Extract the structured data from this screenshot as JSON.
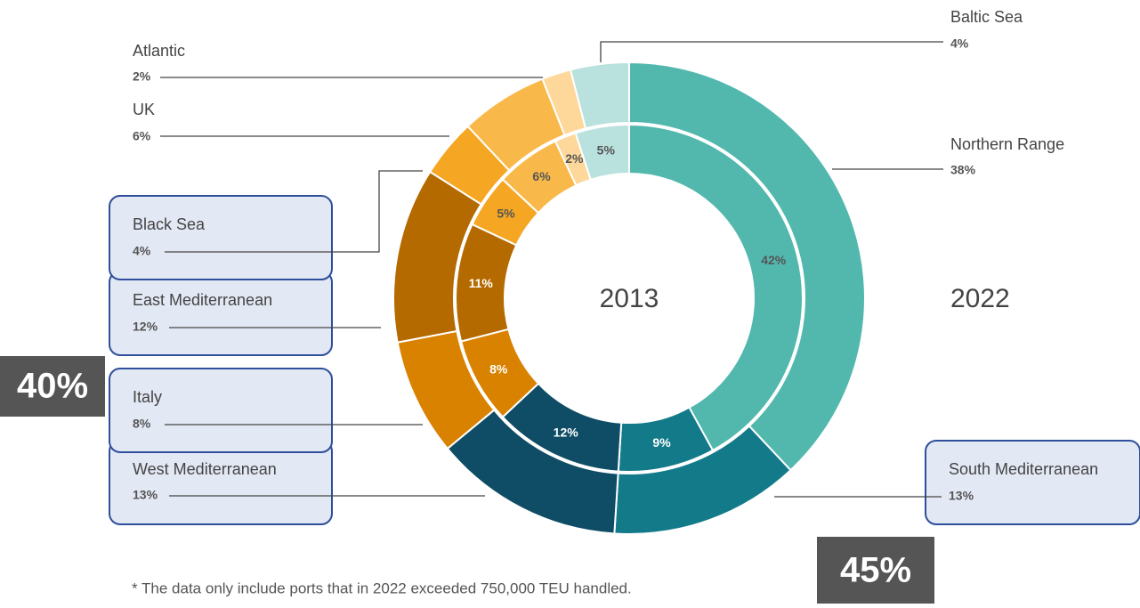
{
  "chart_data": {
    "type": "nested-donut",
    "categories": [
      "Northern Range",
      "South Mediterranean",
      "West Mediterranean",
      "Italy",
      "East Mediterranean",
      "Black Sea",
      "UK",
      "Atlantic",
      "Baltic Sea"
    ],
    "colors": [
      "#52b8ae",
      "#137a89",
      "#0f4c66",
      "#d98200",
      "#b56a00",
      "#f5a623",
      "#f9b94a",
      "#fdd89a",
      "#b9e1dd"
    ],
    "highlighted": [
      false,
      true,
      true,
      true,
      true,
      true,
      false,
      false,
      false
    ],
    "series": [
      {
        "name": "2013",
        "values": [
          42,
          9,
          12,
          8,
          11,
          5,
          6,
          2,
          5
        ],
        "value_labels": [
          "42%",
          "9%",
          "12%",
          "8%",
          "11%",
          "5%",
          "6%",
          "2%",
          "5%"
        ]
      },
      {
        "name": "2022",
        "values": [
          38,
          13,
          13,
          8,
          12,
          4,
          6,
          2,
          4
        ],
        "value_labels": [
          "38%",
          "13%",
          "13%",
          "8%",
          "12%",
          "4%",
          "6%",
          "2%",
          "4%"
        ]
      }
    ],
    "annotations": [
      "40%",
      "45%"
    ],
    "note": "* The data only include ports that in 2022 exceeded 750,000 TEU handled."
  }
}
